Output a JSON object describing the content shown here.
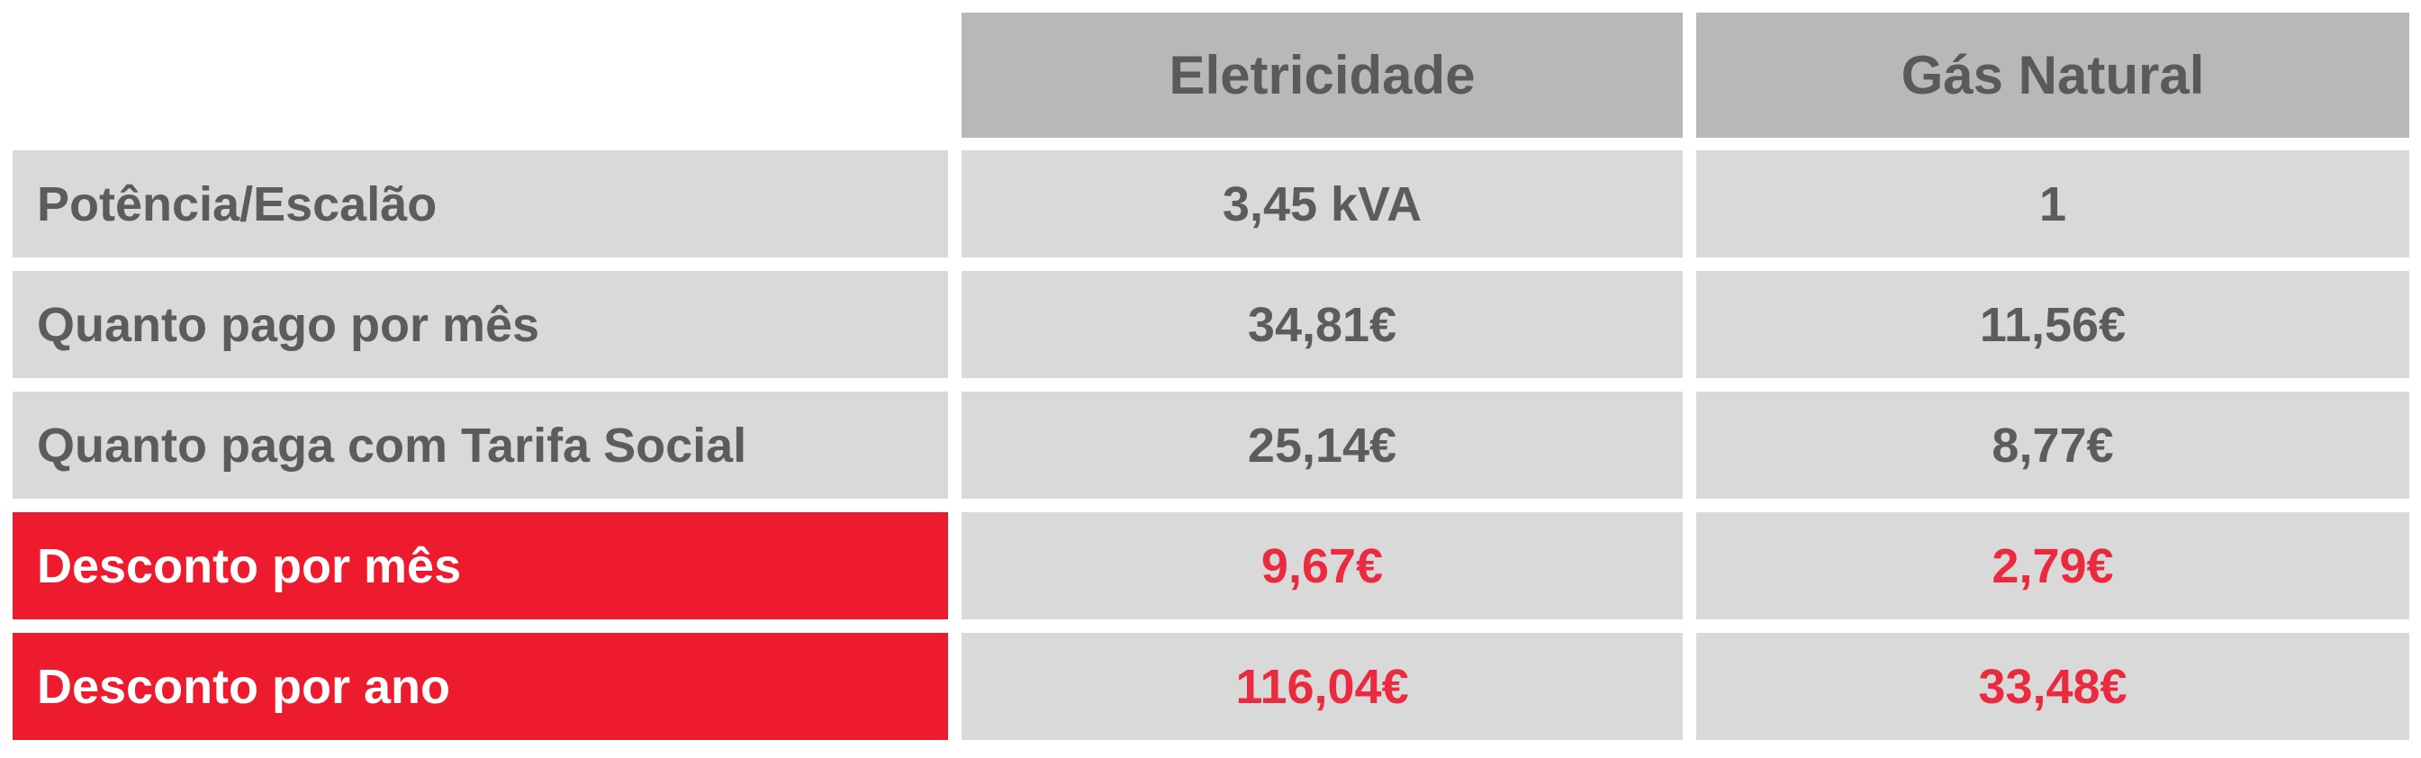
{
  "header": {
    "columns": [
      "Eletricidade",
      "Gás Natural"
    ]
  },
  "rows": [
    {
      "label": "Potência/Escalão",
      "eletricidade": "3,45 kVA",
      "gas": "1",
      "highlight": false
    },
    {
      "label": "Quanto pago por mês",
      "eletricidade": "34,81€",
      "gas": "11,56€",
      "highlight": false
    },
    {
      "label": "Quanto paga com Tarifa Social",
      "eletricidade": "25,14€",
      "gas": "8,77€",
      "highlight": false
    },
    {
      "label": "Desconto por mês",
      "eletricidade": "9,67€",
      "gas": "2,79€",
      "highlight": true
    },
    {
      "label": "Desconto por ano",
      "eletricidade": "116,04€",
      "gas": "33,48€",
      "highlight": true
    }
  ],
  "colors": {
    "header_bg": "#b8b8b8",
    "cell_bg": "#d9d9d9",
    "text": "#5c5c5c",
    "highlight_bg": "#ee1a2e",
    "highlight_text": "#ea2a3e"
  }
}
